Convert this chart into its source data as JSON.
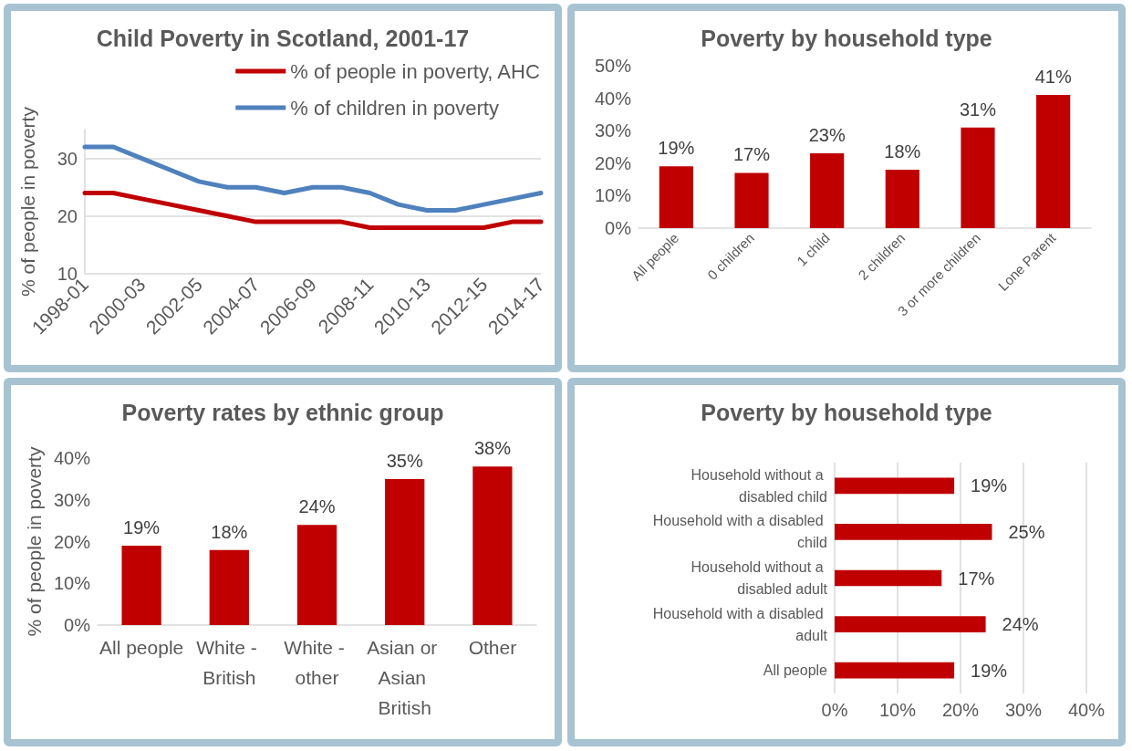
{
  "chart_data": [
    {
      "type": "line",
      "title": "Child Poverty in Scotland, 2001-17",
      "ylabel": "% of people in poverty",
      "categories": [
        "1998-01",
        null,
        "2000-03",
        null,
        "2002-05",
        null,
        "2004-07",
        null,
        "2006-09",
        null,
        "2008-11",
        null,
        "2010-13",
        null,
        "2012-15",
        null,
        "2014-17"
      ],
      "series": [
        {
          "name": "% of people in poverty, AHC",
          "color": "#c00000",
          "values": [
            24,
            24,
            23,
            22,
            21,
            20,
            19,
            19,
            19,
            19,
            18,
            18,
            18,
            18,
            18,
            19,
            19
          ]
        },
        {
          "name": "% of children in poverty",
          "color": "#4f81bd",
          "values": [
            32,
            32,
            30,
            28,
            26,
            25,
            25,
            24,
            25,
            25,
            24,
            22,
            21,
            21,
            22,
            23,
            24
          ]
        }
      ],
      "ylim": [
        10,
        35
      ],
      "yticks": [
        10,
        20,
        30
      ],
      "grid": "y",
      "legend": "top right"
    },
    {
      "type": "bar",
      "title": "Poverty by household type",
      "categories": [
        "All people",
        "0 children",
        "1 child",
        "2 children",
        "3 or more children",
        "Lone Parent"
      ],
      "values": [
        19,
        17,
        23,
        18,
        31,
        41
      ],
      "color": "#c00000",
      "value_labels": [
        "19%",
        "17%",
        "23%",
        "18%",
        "31%",
        "41%"
      ],
      "ylim": [
        0,
        50
      ],
      "yticks": [
        {
          "value": 0,
          "label": "0%"
        },
        {
          "value": 10,
          "label": "10%"
        },
        {
          "value": 20,
          "label": "20%"
        },
        {
          "value": 30,
          "label": "30%"
        },
        {
          "value": 40,
          "label": "40%"
        },
        {
          "value": 50,
          "label": "50%"
        }
      ]
    },
    {
      "type": "bar",
      "title": "Poverty rates by ethnic group",
      "ylabel": "% of people in poverty",
      "categories": [
        "All people",
        "White - British",
        "White - other",
        "Asian or Asian British",
        "Other"
      ],
      "values": [
        19,
        18,
        24,
        35,
        38
      ],
      "color": "#c00000",
      "value_labels": [
        "19%",
        "18%",
        "24%",
        "35%",
        "38%"
      ],
      "ylim": [
        0,
        40
      ],
      "yticks": [
        {
          "value": 0,
          "label": "0%"
        },
        {
          "value": 10,
          "label": "10%"
        },
        {
          "value": 20,
          "label": "20%"
        },
        {
          "value": 30,
          "label": "30%"
        },
        {
          "value": 40,
          "label": "40%"
        }
      ]
    },
    {
      "type": "bar",
      "orientation": "horizontal",
      "title": "Poverty by household type",
      "categories": [
        "Household without a disabled child",
        "Household with a disabled child",
        "Household without a disabled adult",
        "Household with a disabled adult",
        "All people"
      ],
      "values": [
        19,
        25,
        17,
        24,
        19
      ],
      "color": "#c00000",
      "value_labels": [
        "19%",
        "25%",
        "17%",
        "24%",
        "19%"
      ],
      "xlim": [
        0,
        40
      ],
      "xticks": [
        {
          "value": 0,
          "label": "0%"
        },
        {
          "value": 10,
          "label": "10%"
        },
        {
          "value": 20,
          "label": "20%"
        },
        {
          "value": 30,
          "label": "30%"
        },
        {
          "value": 40,
          "label": "40%"
        }
      ],
      "grid": "x"
    }
  ]
}
